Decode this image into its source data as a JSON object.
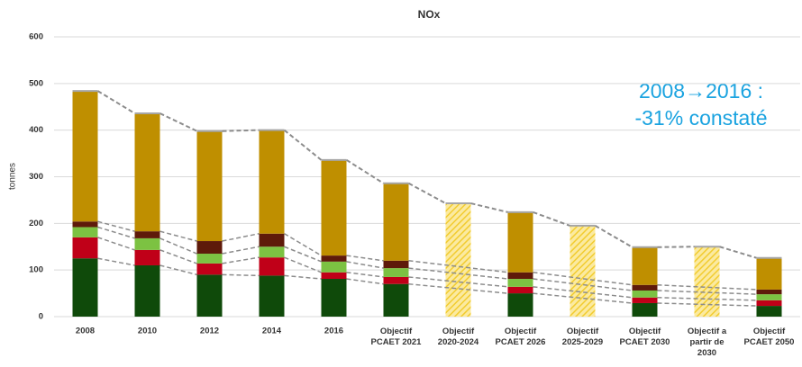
{
  "chart_data": {
    "type": "stacked_bar",
    "title": "NOx",
    "y_label": "tonnes",
    "annotation": [
      "2008→2016 :",
      "-31% constaté"
    ],
    "categories": [
      "2008",
      "2010",
      "2012",
      "2014",
      "2016",
      "Objectif\nPCAET 2021",
      "Objectif\n2020-2024",
      "Objectif\nPCAET 2026",
      "Objectif\n2025-2029",
      "Objectif\nPCAET 2030",
      "Objectif a\npartir de\n2030",
      "Objectif\nPCAET 2050"
    ],
    "series": [
      {
        "color": "#0f4a0a",
        "values": [
          125,
          110,
          90,
          88,
          81,
          70,
          null,
          50,
          null,
          29,
          null,
          23
        ]
      },
      {
        "color": "#c00018",
        "values": [
          45,
          33,
          24,
          39,
          14,
          15,
          null,
          14,
          null,
          12,
          null,
          12
        ]
      },
      {
        "color": "#7cc242",
        "values": [
          22,
          25,
          21,
          23,
          23,
          19,
          null,
          17,
          null,
          15,
          null,
          13
        ]
      },
      {
        "color": "#5e1a0a",
        "values": [
          12,
          15,
          27,
          28,
          13,
          16,
          null,
          14,
          null,
          12,
          null,
          10
        ]
      },
      {
        "color": "#bf8f00",
        "values": [
          280,
          253,
          236,
          222,
          205,
          166,
          null,
          129,
          null,
          81,
          null,
          68
        ]
      },
      {
        "color": "#f2cc30",
        "hatched": true,
        "values": [
          null,
          null,
          null,
          null,
          null,
          null,
          243,
          null,
          195,
          null,
          150,
          null
        ]
      }
    ],
    "ylim": [
      0,
      600
    ],
    "yticks": [
      0,
      100,
      200,
      300,
      400,
      500,
      600
    ],
    "grid": true
  }
}
